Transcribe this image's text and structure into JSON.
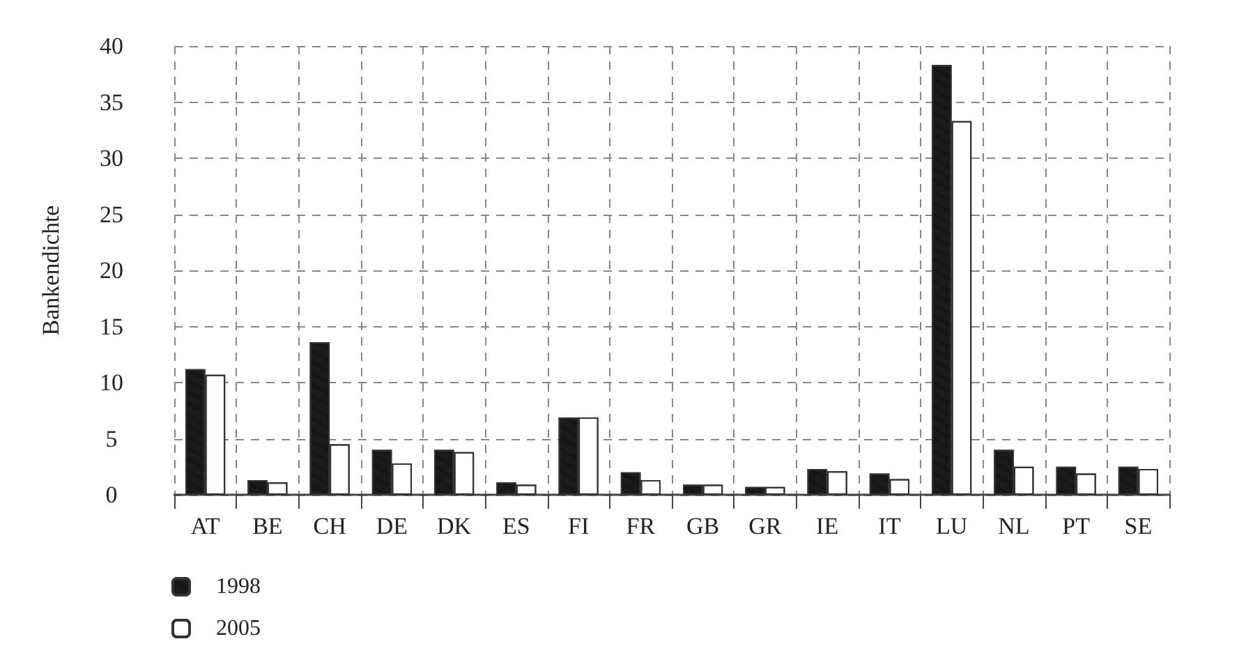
{
  "chart_data": {
    "type": "bar",
    "ylabel": "Bankendichte",
    "categories": [
      "AT",
      "BE",
      "CH",
      "DE",
      "DK",
      "ES",
      "FI",
      "FR",
      "GB",
      "GR",
      "IE",
      "IT",
      "LU",
      "NL",
      "PT",
      "SE"
    ],
    "series": [
      {
        "name": "1998",
        "color": "#1a1a1a",
        "values": [
          11.2,
          1.3,
          13.6,
          4.0,
          4.0,
          1.1,
          6.9,
          2.0,
          0.9,
          0.7,
          2.3,
          1.9,
          38.3,
          4.0,
          2.5,
          2.5
        ]
      },
      {
        "name": "2005",
        "color": "#ffffff",
        "values": [
          10.7,
          1.1,
          4.5,
          2.8,
          3.8,
          0.9,
          6.9,
          1.3,
          0.9,
          0.7,
          2.1,
          1.4,
          33.3,
          2.5,
          1.9,
          2.3
        ]
      }
    ],
    "ylim": [
      0,
      40
    ],
    "yticks": [
      0,
      5,
      10,
      15,
      20,
      25,
      30,
      35,
      40
    ],
    "grid": true,
    "legend": "bottom left"
  }
}
